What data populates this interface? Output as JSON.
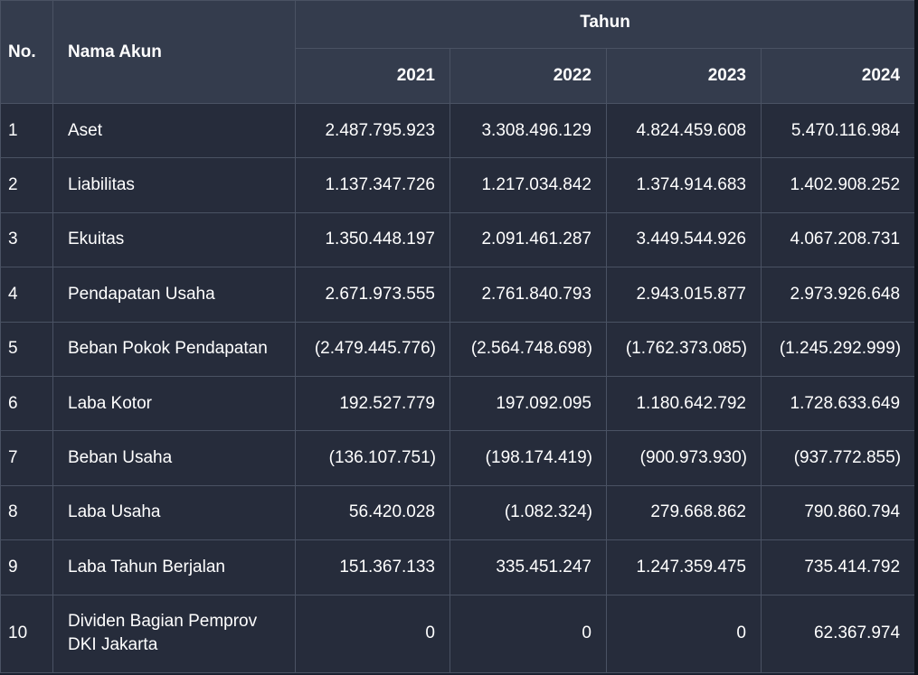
{
  "header": {
    "col_no": "No.",
    "col_account": "Nama Akun",
    "col_year_group": "Tahun",
    "years": [
      "2021",
      "2022",
      "2023",
      "2024"
    ]
  },
  "rows": [
    {
      "no": "1",
      "account": "Aset",
      "values": [
        "2.487.795.923",
        "3.308.496.129",
        "4.824.459.608",
        "5.470.116.984"
      ]
    },
    {
      "no": "2",
      "account": "Liabilitas",
      "values": [
        "1.137.347.726",
        "1.217.034.842",
        "1.374.914.683",
        "1.402.908.252"
      ]
    },
    {
      "no": "3",
      "account": "Ekuitas",
      "values": [
        "1.350.448.197",
        "2.091.461.287",
        "3.449.544.926",
        "4.067.208.731"
      ]
    },
    {
      "no": "4",
      "account": "Pendapatan Usaha",
      "values": [
        "2.671.973.555",
        "2.761.840.793",
        "2.943.015.877",
        "2.973.926.648"
      ]
    },
    {
      "no": "5",
      "account": "Beban Pokok Pendapatan",
      "values": [
        "(2.479.445.776)",
        "(2.564.748.698)",
        "(1.762.373.085)",
        "(1.245.292.999)"
      ]
    },
    {
      "no": "6",
      "account": "Laba Kotor",
      "values": [
        "192.527.779",
        "197.092.095",
        "1.180.642.792",
        "1.728.633.649"
      ]
    },
    {
      "no": "7",
      "account": "Beban Usaha",
      "values": [
        "(136.107.751)",
        "(198.174.419)",
        "(900.973.930)",
        "(937.772.855)"
      ]
    },
    {
      "no": "8",
      "account": "Laba Usaha",
      "values": [
        "56.420.028",
        "(1.082.324)",
        "279.668.862",
        "790.860.794"
      ]
    },
    {
      "no": "9",
      "account": "Laba Tahun Berjalan",
      "values": [
        "151.367.133",
        "335.451.247",
        "1.247.359.475",
        "735.414.792"
      ]
    },
    {
      "no": "10",
      "account": "Dividen Bagian Pemprov DKI Jakarta",
      "values": [
        "0",
        "0",
        "0",
        "62.367.974"
      ]
    }
  ]
}
